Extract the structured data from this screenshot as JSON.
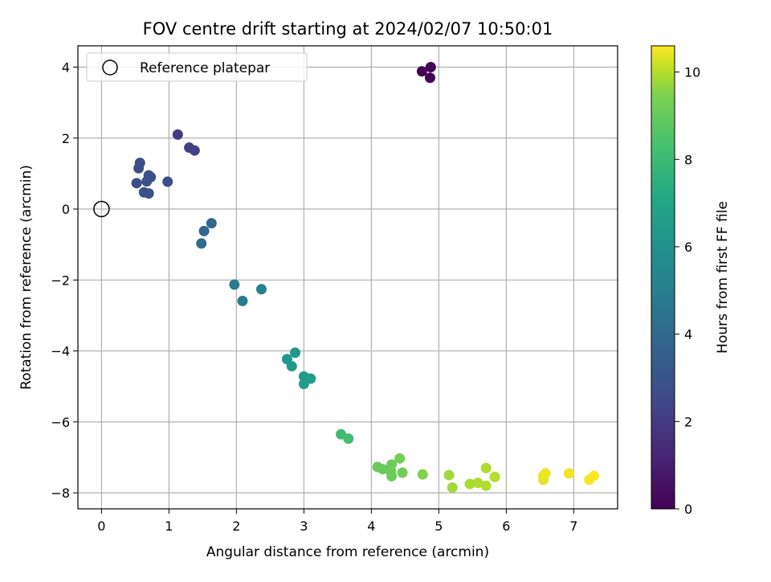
{
  "chart_data": {
    "type": "scatter",
    "title": "FOV centre drift starting at 2024/02/07 10:50:01",
    "xlabel": "Angular distance from reference (arcmin)",
    "ylabel": "Rotation from reference (arcmin)",
    "xlim": [
      -0.35,
      7.65
    ],
    "ylim": [
      -8.45,
      4.6
    ],
    "xticks": [
      0,
      1,
      2,
      3,
      4,
      5,
      6,
      7
    ],
    "yticks": [
      -8,
      -6,
      -4,
      -2,
      0,
      2,
      4
    ],
    "grid": true,
    "legend": {
      "placement": "top-left",
      "entries": [
        "Reference platepar"
      ]
    },
    "reference": {
      "x": 0,
      "y": 0,
      "label": "Reference platepar"
    },
    "colorbar": {
      "label": "Hours from first FF file",
      "colormap": "viridis",
      "range": [
        0,
        10.6
      ],
      "ticks": [
        0,
        2,
        4,
        6,
        8,
        10
      ]
    },
    "points": [
      {
        "x": 4.75,
        "y": 3.88,
        "h": 0.0
      },
      {
        "x": 4.88,
        "y": 4.0,
        "h": 0.05
      },
      {
        "x": 4.87,
        "y": 3.7,
        "h": 0.1
      },
      {
        "x": 1.13,
        "y": 2.1,
        "h": 1.9
      },
      {
        "x": 1.3,
        "y": 1.73,
        "h": 1.95
      },
      {
        "x": 1.38,
        "y": 1.65,
        "h": 2.0
      },
      {
        "x": 0.57,
        "y": 1.3,
        "h": 2.5
      },
      {
        "x": 0.55,
        "y": 1.15,
        "h": 2.5
      },
      {
        "x": 0.7,
        "y": 0.95,
        "h": 2.6
      },
      {
        "x": 0.73,
        "y": 0.9,
        "h": 2.6
      },
      {
        "x": 0.52,
        "y": 0.73,
        "h": 2.5
      },
      {
        "x": 0.67,
        "y": 0.78,
        "h": 2.6
      },
      {
        "x": 0.98,
        "y": 0.77,
        "h": 2.5
      },
      {
        "x": 0.63,
        "y": 0.47,
        "h": 2.6
      },
      {
        "x": 0.7,
        "y": 0.44,
        "h": 2.6
      },
      {
        "x": 1.63,
        "y": -0.4,
        "h": 3.5
      },
      {
        "x": 1.52,
        "y": -0.62,
        "h": 3.6
      },
      {
        "x": 1.48,
        "y": -0.97,
        "h": 3.7
      },
      {
        "x": 1.97,
        "y": -2.13,
        "h": 4.4
      },
      {
        "x": 2.09,
        "y": -2.59,
        "h": 4.4
      },
      {
        "x": 2.37,
        "y": -2.26,
        "h": 4.6
      },
      {
        "x": 2.75,
        "y": -4.23,
        "h": 5.6
      },
      {
        "x": 2.87,
        "y": -4.05,
        "h": 5.6
      },
      {
        "x": 2.82,
        "y": -4.43,
        "h": 5.7
      },
      {
        "x": 3.0,
        "y": -4.72,
        "h": 5.8
      },
      {
        "x": 3.1,
        "y": -4.78,
        "h": 5.85
      },
      {
        "x": 3.0,
        "y": -4.93,
        "h": 5.85
      },
      {
        "x": 3.55,
        "y": -6.35,
        "h": 7.3
      },
      {
        "x": 3.66,
        "y": -6.47,
        "h": 7.35
      },
      {
        "x": 4.09,
        "y": -7.27,
        "h": 8.1
      },
      {
        "x": 4.17,
        "y": -7.33,
        "h": 8.1
      },
      {
        "x": 4.3,
        "y": -7.2,
        "h": 8.2
      },
      {
        "x": 4.29,
        "y": -7.4,
        "h": 8.2
      },
      {
        "x": 4.3,
        "y": -7.53,
        "h": 8.2
      },
      {
        "x": 4.42,
        "y": -7.03,
        "h": 8.3
      },
      {
        "x": 4.46,
        "y": -7.43,
        "h": 8.3
      },
      {
        "x": 4.76,
        "y": -7.48,
        "h": 8.6
      },
      {
        "x": 5.15,
        "y": -7.5,
        "h": 9.1
      },
      {
        "x": 5.2,
        "y": -7.85,
        "h": 9.1
      },
      {
        "x": 5.46,
        "y": -7.75,
        "h": 9.2
      },
      {
        "x": 5.58,
        "y": -7.72,
        "h": 9.3
      },
      {
        "x": 5.7,
        "y": -7.3,
        "h": 9.3
      },
      {
        "x": 5.7,
        "y": -7.8,
        "h": 9.35
      },
      {
        "x": 5.83,
        "y": -7.55,
        "h": 9.4
      },
      {
        "x": 6.55,
        "y": -7.52,
        "h": 10.2
      },
      {
        "x": 6.55,
        "y": -7.63,
        "h": 10.2
      },
      {
        "x": 6.58,
        "y": -7.45,
        "h": 10.3
      },
      {
        "x": 6.93,
        "y": -7.45,
        "h": 10.4
      },
      {
        "x": 7.23,
        "y": -7.63,
        "h": 10.5
      },
      {
        "x": 7.3,
        "y": -7.52,
        "h": 10.6
      }
    ]
  }
}
